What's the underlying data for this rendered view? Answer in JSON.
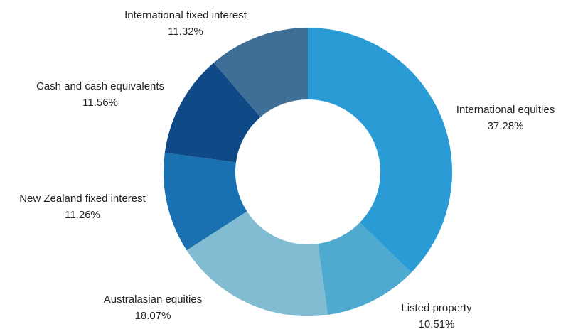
{
  "chart_data": {
    "type": "donut",
    "categories": [
      "International equities",
      "Listed property",
      "Australasian equities",
      "New Zealand fixed interest",
      "Cash and cash equivalents",
      "International fixed interest"
    ],
    "values": [
      37.28,
      10.51,
      18.07,
      11.26,
      11.56,
      11.32
    ],
    "value_labels": [
      "37.28%",
      "10.51%",
      "18.07%",
      "11.26%",
      "11.56%",
      "11.32%"
    ],
    "colors": [
      "#2a9bd5",
      "#4eaacf",
      "#82bcd2",
      "#1a71b1",
      "#0f4a86",
      "#3f6e97"
    ]
  }
}
